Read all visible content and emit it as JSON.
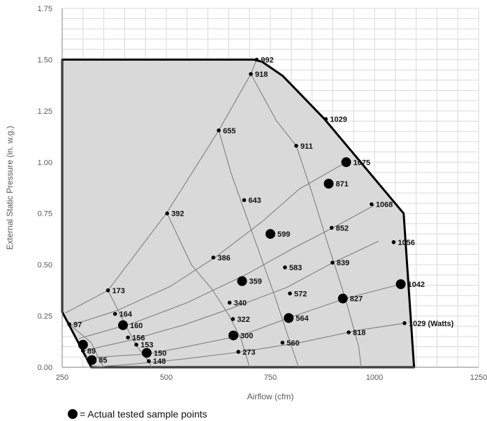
{
  "chart_data": {
    "type": "scatter",
    "title": "",
    "xlabel": "Airflow (cfm)",
    "ylabel": "External Static Pressure (in. w.g.)",
    "xlim": [
      250,
      1250
    ],
    "ylim": [
      0,
      1.75
    ],
    "x_ticks": [
      250,
      500,
      750,
      1000,
      1250
    ],
    "x_tick_labels": [
      "250",
      "500",
      "750",
      "1000",
      "1250"
    ],
    "y_ticks": [
      0,
      0.25,
      0.5,
      0.75,
      1.0,
      1.25,
      1.5,
      1.75
    ],
    "y_tick_labels": [
      "0.00",
      "0.25",
      "0.50",
      "0.75",
      "1.00",
      "1.25",
      "1.50",
      "1.75"
    ],
    "grid": true,
    "colors": {
      "region_fill": "#d9d9d9",
      "boundary": "#000000",
      "curves": "#808080",
      "grid": "#d9d9d9",
      "points": "#000000"
    },
    "operating_region": [
      [
        250,
        1.5
      ],
      [
        710,
        1.5
      ],
      [
        730,
        1.49
      ],
      [
        780,
        1.42
      ],
      [
        880,
        1.21
      ],
      [
        1070,
        0.75
      ],
      [
        1095,
        0.0
      ],
      [
        320,
        0.0
      ],
      [
        250,
        0.27
      ]
    ],
    "points": [
      {
        "x": 717,
        "y": 1.5,
        "label": "992",
        "tested": false
      },
      {
        "x": 703,
        "y": 1.43,
        "label": "918",
        "tested": false
      },
      {
        "x": 883,
        "y": 1.21,
        "label": "1029",
        "tested": false
      },
      {
        "x": 626,
        "y": 1.155,
        "label": "655",
        "tested": false
      },
      {
        "x": 812,
        "y": 1.08,
        "label": "911",
        "tested": false
      },
      {
        "x": 932,
        "y": 1.0,
        "label": "1075",
        "tested": true
      },
      {
        "x": 890,
        "y": 0.895,
        "label": "871",
        "tested": true
      },
      {
        "x": 687,
        "y": 0.815,
        "label": "643",
        "tested": false
      },
      {
        "x": 993,
        "y": 0.795,
        "label": "1068",
        "tested": false
      },
      {
        "x": 750,
        "y": 0.65,
        "label": "599",
        "tested": true
      },
      {
        "x": 502,
        "y": 0.75,
        "label": "392",
        "tested": false
      },
      {
        "x": 897,
        "y": 0.68,
        "label": "852",
        "tested": false
      },
      {
        "x": 1046,
        "y": 0.61,
        "label": "1056",
        "tested": false
      },
      {
        "x": 613,
        "y": 0.535,
        "label": "386",
        "tested": false
      },
      {
        "x": 785,
        "y": 0.487,
        "label": "583",
        "tested": false
      },
      {
        "x": 899,
        "y": 0.51,
        "label": "839",
        "tested": false
      },
      {
        "x": 1063,
        "y": 0.405,
        "label": "1042",
        "tested": true
      },
      {
        "x": 682,
        "y": 0.42,
        "label": "359",
        "tested": true
      },
      {
        "x": 797,
        "y": 0.36,
        "label": "572",
        "tested": false
      },
      {
        "x": 924,
        "y": 0.335,
        "label": "827",
        "tested": true
      },
      {
        "x": 652,
        "y": 0.315,
        "label": "340",
        "tested": false
      },
      {
        "x": 360,
        "y": 0.375,
        "label": "173",
        "tested": false
      },
      {
        "x": 377,
        "y": 0.26,
        "label": "164",
        "tested": false
      },
      {
        "x": 660,
        "y": 0.235,
        "label": "322",
        "tested": false
      },
      {
        "x": 794,
        "y": 0.24,
        "label": "564",
        "tested": true
      },
      {
        "x": 396,
        "y": 0.205,
        "label": "160",
        "tested": true
      },
      {
        "x": 938,
        "y": 0.17,
        "label": "818",
        "tested": false
      },
      {
        "x": 661,
        "y": 0.155,
        "label": "300",
        "tested": true
      },
      {
        "x": 408,
        "y": 0.145,
        "label": "156",
        "tested": false
      },
      {
        "x": 779,
        "y": 0.12,
        "label": "560",
        "tested": false
      },
      {
        "x": 1072,
        "y": 0.215,
        "label": "1029 (Watts)",
        "tested": false
      },
      {
        "x": 267,
        "y": 0.21,
        "label": "97",
        "tested": false
      },
      {
        "x": 300,
        "y": 0.11,
        "label": "",
        "tested": true
      },
      {
        "x": 300,
        "y": 0.08,
        "label": "89",
        "tested": false
      },
      {
        "x": 428,
        "y": 0.11,
        "label": "153",
        "tested": false
      },
      {
        "x": 453,
        "y": 0.07,
        "label": "150",
        "tested": true
      },
      {
        "x": 673,
        "y": 0.075,
        "label": "273",
        "tested": false
      },
      {
        "x": 321,
        "y": 0.035,
        "label": "85",
        "tested": true
      },
      {
        "x": 458,
        "y": 0.03,
        "label": "148",
        "tested": false
      }
    ],
    "fan_curves": [
      [
        [
          320,
          0.0
        ],
        [
          420,
          0.015
        ],
        [
          540,
          0.04
        ],
        [
          680,
          0.075
        ],
        [
          820,
          0.12
        ],
        [
          960,
          0.18
        ],
        [
          1072,
          0.215
        ]
      ],
      [
        [
          305,
          0.045
        ],
        [
          458,
          0.065
        ],
        [
          560,
          0.105
        ],
        [
          680,
          0.155
        ],
        [
          800,
          0.245
        ],
        [
          930,
          0.335
        ],
        [
          1063,
          0.405
        ]
      ],
      [
        [
          300,
          0.08
        ],
        [
          410,
          0.13
        ],
        [
          540,
          0.205
        ],
        [
          660,
          0.29
        ],
        [
          790,
          0.39
        ],
        [
          900,
          0.51
        ],
        [
          1010,
          0.615
        ]
      ],
      [
        [
          290,
          0.14
        ],
        [
          420,
          0.215
        ],
        [
          550,
          0.315
        ],
        [
          690,
          0.45
        ],
        [
          800,
          0.575
        ],
        [
          900,
          0.68
        ],
        [
          1000,
          0.79
        ]
      ],
      [
        [
          272,
          0.205
        ],
        [
          380,
          0.275
        ],
        [
          510,
          0.395
        ],
        [
          620,
          0.54
        ],
        [
          730,
          0.71
        ],
        [
          820,
          0.87
        ],
        [
          932,
          1.0
        ]
      ],
      [
        [
          258,
          0.265
        ],
        [
          360,
          0.375
        ],
        [
          500,
          0.75
        ],
        [
          626,
          1.155
        ],
        [
          703,
          1.43
        ],
        [
          717,
          1.5
        ]
      ]
    ],
    "speed_curves": [
      [
        [
          267,
          0.21
        ],
        [
          320,
          0.12
        ],
        [
          340,
          0.035
        ],
        [
          350,
          0.0
        ]
      ],
      [
        [
          360,
          0.375
        ],
        [
          390,
          0.255
        ],
        [
          410,
          0.175
        ],
        [
          430,
          0.1
        ],
        [
          455,
          0.035
        ],
        [
          465,
          0.0
        ]
      ],
      [
        [
          502,
          0.75
        ],
        [
          560,
          0.5
        ],
        [
          610,
          0.38
        ],
        [
          650,
          0.255
        ],
        [
          680,
          0.135
        ],
        [
          700,
          0.0
        ]
      ],
      [
        [
          626,
          1.155
        ],
        [
          655,
          0.95
        ],
        [
          690,
          0.75
        ],
        [
          725,
          0.55
        ],
        [
          760,
          0.35
        ],
        [
          790,
          0.165
        ],
        [
          818,
          0.0
        ]
      ],
      [
        [
          703,
          1.43
        ],
        [
          765,
          1.2
        ],
        [
          812,
          1.08
        ],
        [
          850,
          0.85
        ],
        [
          885,
          0.62
        ],
        [
          930,
          0.335
        ],
        [
          962,
          0.1
        ],
        [
          968,
          0.0
        ]
      ]
    ],
    "legend": {
      "marker": "filled-circle",
      "label": "= Actual tested sample points"
    }
  }
}
